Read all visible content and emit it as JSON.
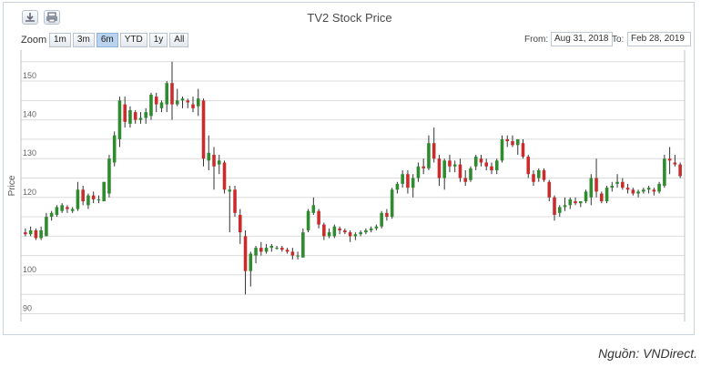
{
  "toolbar": {
    "download_icon": "download-icon",
    "print_icon": "print-icon",
    "zoom_label": "Zoom",
    "zoom_options": [
      "1m",
      "3m",
      "6m",
      "YTD",
      "1y",
      "All"
    ],
    "active_zoom": "6m",
    "from_label": "From:",
    "from_value": "Aug 31, 2018",
    "to_label": "To:",
    "to_value": "Feb 28, 2019"
  },
  "source_note": "Nguồn: VNDirect.",
  "colors": {
    "up": "#2e8b2e",
    "down": "#cc2b2b",
    "wick": "#333333",
    "grid": "#dcdcdc"
  },
  "chart_data": {
    "type": "candlestick",
    "title": "TV2 Stock Price",
    "ylabel": "Price",
    "ylim": [
      88,
      158
    ],
    "yticks": [
      90,
      100,
      110,
      120,
      130,
      140,
      150
    ],
    "ytick_labels": [
      "90",
      "100",
      "",
      "120",
      "130",
      "140",
      "150"
    ],
    "xlim": [
      "Aug 31, 2018",
      "Feb 28, 2019"
    ],
    "ohlc": [
      [
        111.0,
        112.0,
        110.0,
        110.5
      ],
      [
        110.5,
        112.5,
        110.0,
        111.5
      ],
      [
        111.5,
        112.0,
        109.0,
        109.5
      ],
      [
        109.5,
        112.5,
        109.0,
        111.5
      ],
      [
        110.0,
        116.0,
        110.0,
        115.0
      ],
      [
        115.0,
        116.5,
        114.0,
        116.0
      ],
      [
        115.5,
        118.0,
        115.0,
        117.5
      ],
      [
        116.5,
        118.5,
        116.0,
        118.0
      ],
      [
        117.5,
        118.0,
        116.0,
        117.0
      ],
      [
        116.5,
        117.5,
        116.0,
        117.0
      ],
      [
        117.0,
        124.0,
        116.5,
        122.0
      ],
      [
        122.0,
        123.0,
        118.0,
        119.0
      ],
      [
        118.0,
        121.0,
        117.0,
        120.5
      ],
      [
        120.5,
        121.5,
        118.5,
        119.5
      ],
      [
        119.5,
        120.5,
        118.5,
        119.5
      ],
      [
        119.0,
        124.0,
        119.0,
        124.0
      ],
      [
        121.0,
        131.0,
        120.0,
        130.0
      ],
      [
        129.0,
        137.0,
        128.0,
        136.0
      ],
      [
        135.0,
        146.0,
        133.0,
        145.0
      ],
      [
        144.0,
        146.0,
        138.0,
        139.5
      ],
      [
        139.0,
        143.5,
        138.0,
        142.5
      ],
      [
        142.0,
        142.5,
        139.0,
        140.0
      ],
      [
        140.0,
        142.0,
        139.0,
        140.5
      ],
      [
        140.5,
        143.0,
        139.0,
        142.0
      ],
      [
        141.0,
        147.0,
        140.0,
        146.5
      ],
      [
        146.0,
        147.0,
        142.0,
        144.0
      ],
      [
        143.0,
        145.0,
        142.0,
        144.5
      ],
      [
        144.0,
        150.0,
        142.0,
        149.5
      ],
      [
        149.5,
        155.0,
        140.0,
        144.0
      ],
      [
        144.0,
        148.0,
        143.5,
        145.0
      ],
      [
        145.0,
        146.0,
        143.0,
        145.5
      ],
      [
        145.0,
        145.5,
        143.0,
        144.5
      ],
      [
        144.0,
        146.0,
        142.0,
        143.0
      ],
      [
        143.5,
        148.0,
        141.0,
        145.5
      ],
      [
        145.0,
        145.5,
        128.0,
        130.0
      ],
      [
        129.5,
        136.0,
        127.0,
        131.5
      ],
      [
        131.0,
        133.0,
        122.0,
        128.0
      ],
      [
        128.5,
        131.0,
        126.0,
        129.5
      ],
      [
        129.0,
        129.5,
        121.0,
        122.0
      ],
      [
        121.5,
        123.0,
        111.0,
        122.0
      ],
      [
        122.0,
        123.0,
        115.0,
        116.0
      ],
      [
        115.5,
        117.0,
        108.0,
        111.0
      ],
      [
        110.0,
        111.5,
        95.0,
        101.0
      ],
      [
        101.0,
        106.0,
        97.0,
        105.5
      ],
      [
        105.0,
        107.5,
        103.0,
        107.0
      ],
      [
        107.0,
        108.5,
        105.0,
        106.0
      ],
      [
        106.0,
        108.0,
        105.5,
        107.0
      ],
      [
        107.0,
        108.0,
        106.0,
        107.5
      ],
      [
        107.0,
        107.5,
        106.5,
        107.0
      ],
      [
        107.0,
        107.5,
        106.0,
        106.5
      ],
      [
        106.5,
        107.0,
        105.5,
        106.0
      ],
      [
        106.0,
        107.0,
        104.0,
        105.0
      ],
      [
        105.0,
        106.0,
        104.0,
        105.0
      ],
      [
        104.5,
        112.0,
        104.5,
        111.0
      ],
      [
        111.5,
        117.0,
        111.0,
        116.5
      ],
      [
        116.0,
        120.0,
        115.5,
        118.0
      ],
      [
        116.5,
        117.0,
        112.0,
        113.0
      ],
      [
        113.0,
        113.5,
        109.0,
        110.0
      ],
      [
        110.0,
        112.0,
        109.5,
        111.0
      ],
      [
        110.0,
        113.0,
        109.5,
        112.5
      ],
      [
        112.0,
        112.5,
        110.5,
        111.5
      ],
      [
        111.5,
        112.0,
        110.5,
        111.0
      ],
      [
        111.0,
        111.5,
        108.5,
        110.0
      ],
      [
        110.0,
        111.0,
        109.0,
        110.5
      ],
      [
        110.5,
        111.5,
        110.0,
        111.0
      ],
      [
        111.0,
        112.0,
        110.5,
        111.5
      ],
      [
        111.5,
        112.5,
        111.0,
        112.0
      ],
      [
        112.0,
        113.0,
        111.5,
        112.5
      ],
      [
        112.5,
        116.5,
        112.0,
        116.0
      ],
      [
        116.0,
        117.0,
        114.0,
        115.0
      ],
      [
        115.0,
        122.5,
        114.5,
        122.0
      ],
      [
        122.0,
        124.0,
        121.0,
        123.5
      ],
      [
        123.5,
        127.0,
        122.5,
        126.0
      ],
      [
        126.0,
        127.0,
        121.0,
        122.5
      ],
      [
        122.5,
        126.0,
        120.0,
        125.0
      ],
      [
        125.0,
        129.0,
        124.0,
        128.0
      ],
      [
        128.0,
        130.0,
        126.0,
        127.5
      ],
      [
        127.5,
        136.0,
        127.0,
        134.0
      ],
      [
        134.0,
        138.0,
        129.0,
        130.0
      ],
      [
        130.0,
        131.0,
        123.0,
        125.0
      ],
      [
        125.0,
        130.0,
        122.0,
        129.5
      ],
      [
        129.5,
        131.0,
        126.5,
        128.0
      ],
      [
        128.0,
        129.5,
        126.5,
        128.5
      ],
      [
        128.5,
        130.0,
        124.0,
        125.0
      ],
      [
        125.0,
        127.0,
        123.0,
        124.0
      ],
      [
        124.5,
        128.0,
        124.0,
        127.5
      ],
      [
        128.0,
        131.0,
        127.0,
        130.5
      ],
      [
        130.0,
        131.0,
        128.0,
        129.0
      ],
      [
        129.0,
        130.0,
        127.0,
        128.0
      ],
      [
        128.0,
        129.0,
        126.0,
        127.0
      ],
      [
        127.0,
        130.0,
        126.0,
        129.5
      ],
      [
        129.5,
        136.0,
        129.0,
        135.0
      ],
      [
        135.0,
        136.0,
        133.0,
        134.5
      ],
      [
        134.5,
        136.0,
        133.0,
        133.5
      ],
      [
        133.5,
        135.0,
        131.0,
        135.0
      ],
      [
        134.0,
        135.0,
        130.0,
        130.5
      ],
      [
        130.5,
        131.0,
        125.0,
        126.0
      ],
      [
        126.0,
        127.0,
        123.0,
        124.0
      ],
      [
        125.0,
        127.5,
        124.0,
        127.0
      ],
      [
        127.0,
        127.5,
        124.0,
        124.5
      ],
      [
        124.0,
        124.5,
        119.0,
        120.0
      ],
      [
        120.0,
        120.5,
        114.0,
        115.5
      ],
      [
        116.0,
        118.0,
        115.0,
        117.5
      ],
      [
        117.5,
        120.0,
        116.5,
        118.0
      ],
      [
        118.0,
        120.0,
        117.0,
        119.5
      ],
      [
        119.0,
        120.0,
        118.0,
        118.5
      ],
      [
        118.5,
        119.0,
        117.5,
        119.0
      ],
      [
        119.0,
        122.0,
        118.5,
        121.5
      ],
      [
        120.0,
        126.0,
        118.0,
        125.0
      ],
      [
        125.0,
        130.0,
        120.0,
        121.5
      ],
      [
        121.0,
        121.5,
        118.5,
        119.0
      ],
      [
        119.0,
        123.0,
        118.5,
        122.5
      ],
      [
        122.5,
        124.0,
        121.5,
        123.0
      ],
      [
        123.5,
        126.0,
        122.5,
        124.0
      ],
      [
        124.0,
        125.0,
        122.0,
        122.5
      ],
      [
        122.5,
        123.5,
        121.0,
        122.0
      ],
      [
        122.0,
        122.5,
        120.5,
        121.0
      ],
      [
        121.0,
        122.0,
        120.0,
        121.5
      ],
      [
        121.5,
        122.5,
        121.0,
        122.0
      ],
      [
        122.0,
        123.0,
        121.0,
        122.5
      ],
      [
        122.0,
        122.5,
        120.5,
        121.5
      ],
      [
        121.5,
        124.0,
        121.0,
        123.5
      ],
      [
        123.0,
        131.0,
        122.5,
        130.0
      ],
      [
        130.0,
        133.0,
        126.0,
        129.5
      ],
      [
        129.0,
        131.0,
        128.0,
        128.5
      ],
      [
        128.5,
        129.0,
        125.0,
        125.5
      ]
    ]
  }
}
